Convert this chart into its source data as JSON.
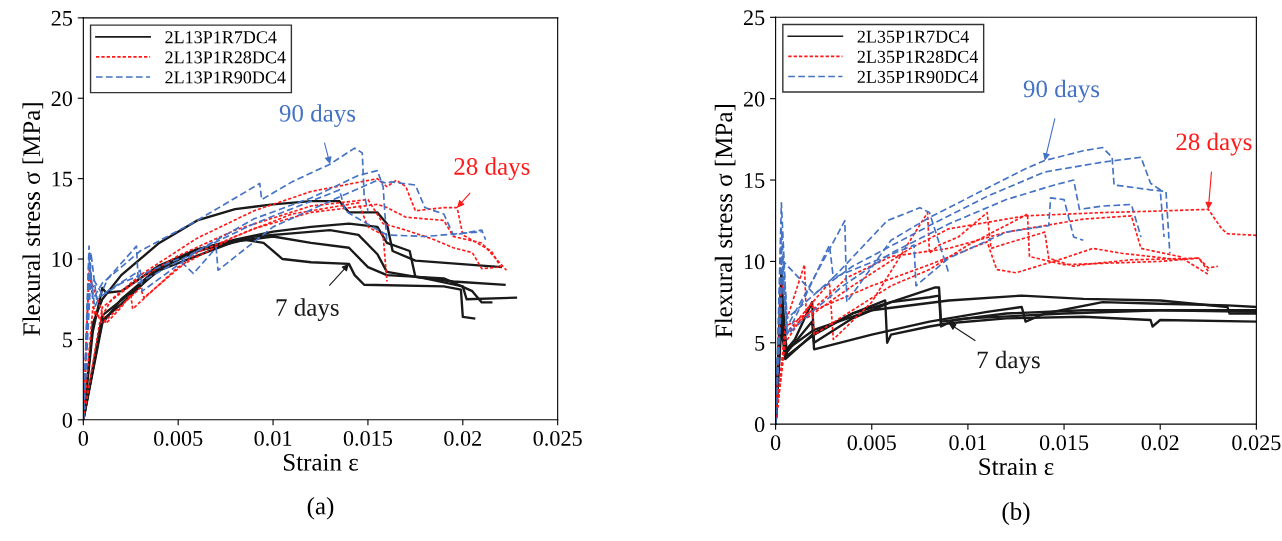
{
  "chart_data": [
    {
      "type": "line",
      "xlabel": "Strain ε",
      "ylabel": "Flexural stress σ [MPa]",
      "xlim": [
        0,
        0.025
      ],
      "ylim": [
        0,
        25
      ],
      "xticks": [
        0,
        0.005,
        0.01,
        0.015,
        0.02,
        0.025
      ],
      "yticks": [
        0,
        5,
        10,
        15,
        20,
        25
      ],
      "grid": false,
      "legend": "top left",
      "series": [
        {
          "name": "2L13P1R7DC4",
          "color": "#1a1a1a",
          "line_style": "solid",
          "x": [
            0,
            0.0005,
            0.001,
            0.002,
            0.004,
            0.006,
            0.008,
            0.01,
            0.012,
            0.0135,
            0.014,
            0.0155,
            0.016,
            0.0163,
            0.0175,
            0.022
          ],
          "values": [
            0,
            6,
            7.5,
            9,
            11,
            12.4,
            13.1,
            13.4,
            13.6,
            13.6,
            12.9,
            12.9,
            12.2,
            10.5,
            9.9,
            9.5
          ]
        },
        {
          "color": "#1a1a1a",
          "line_style": "solid",
          "x": [
            0,
            0.0005,
            0.001,
            0.0012,
            0.002,
            0.004,
            0.006,
            0.008,
            0.01,
            0.012,
            0.014,
            0.0155,
            0.016,
            0.0172,
            0.0175,
            0.0195,
            0.0222
          ],
          "values": [
            0,
            5.5,
            8.2,
            7.9,
            8,
            9.6,
            10.6,
            11.2,
            11.7,
            12,
            12.2,
            12,
            11,
            10.5,
            8.9,
            8.6,
            8.4
          ]
        },
        {
          "color": "#1a1a1a",
          "line_style": "solid",
          "x": [
            0,
            0.001,
            0.002,
            0.004,
            0.006,
            0.009,
            0.011,
            0.013,
            0.0145,
            0.0155,
            0.016,
            0.018,
            0.02,
            0.0202,
            0.0228
          ],
          "values": [
            0,
            6,
            7.5,
            9.5,
            10.6,
            11.4,
            11.6,
            11.8,
            11.5,
            10.3,
            9.2,
            8.8,
            8.3,
            7.5,
            7.6
          ]
        },
        {
          "color": "#1a1a1a",
          "line_style": "solid",
          "x": [
            0,
            0.001,
            0.002,
            0.004,
            0.006,
            0.0085,
            0.0095,
            0.0105,
            0.012,
            0.014,
            0.0143,
            0.0148,
            0.019,
            0.0199,
            0.02,
            0.0206
          ],
          "values": [
            0,
            6.2,
            7.2,
            9.4,
            10.5,
            11.2,
            11,
            10,
            9.8,
            9.7,
            9,
            8.4,
            8.3,
            8.1,
            6.4,
            6.3
          ]
        },
        {
          "color": "#1a1a1a",
          "line_style": "solid",
          "x": [
            0,
            0.001,
            0.004,
            0.008,
            0.01,
            0.012,
            0.014,
            0.015,
            0.016,
            0.019,
            0.0205,
            0.021,
            0.0215
          ],
          "values": [
            0,
            6.5,
            9.3,
            11.1,
            11.4,
            11,
            10.7,
            9.5,
            9,
            8.8,
            8,
            7.3,
            7.3
          ]
        },
        {
          "name": "2L13P1R28DC4",
          "color": "#ff1a1a",
          "line_style": "dotted",
          "x": [
            0,
            0.0003,
            0.0006,
            0.001,
            0.0015,
            0.003,
            0.006,
            0.009,
            0.012,
            0.0155,
            0.016,
            0.0165,
            0.017,
            0.0175,
            0.019,
            0.0197,
            0.02,
            0.0215,
            0.022
          ],
          "values": [
            0,
            9.5,
            6.5,
            6.5,
            7.5,
            9,
            11.3,
            13,
            14.2,
            15,
            14.5,
            14.9,
            14.5,
            13,
            13.2,
            13.2,
            11.5,
            10.5,
            9.5
          ]
        },
        {
          "color": "#ff1a1a",
          "line_style": "dotted",
          "x": [
            0,
            0.0003,
            0.0012,
            0.002,
            0.0025,
            0.0026,
            0.005,
            0.008,
            0.011,
            0.0145,
            0.015,
            0.0158,
            0.016
          ],
          "values": [
            0,
            9,
            6,
            7,
            7.8,
            6.9,
            9.5,
            11.4,
            12.8,
            13.5,
            12,
            11.5,
            8.6
          ]
        },
        {
          "color": "#ff1a1a",
          "line_style": "dotted",
          "x": [
            0,
            0.0005,
            0.001,
            0.003,
            0.0032,
            0.006,
            0.009,
            0.012,
            0.0155,
            0.016,
            0.017,
            0.019,
            0.0195,
            0.021,
            0.0223
          ],
          "values": [
            0,
            7,
            6,
            8.2,
            7.6,
            10.4,
            11.9,
            12.9,
            13.4,
            13.2,
            12.6,
            12.4,
            11.4,
            11,
            9.3
          ]
        },
        {
          "color": "#ff1a1a",
          "line_style": "dotted",
          "x": [
            0,
            0.001,
            0.003,
            0.005,
            0.008,
            0.012,
            0.015,
            0.0158,
            0.017,
            0.0185,
            0.0195,
            0.0205,
            0.021,
            0.022
          ],
          "values": [
            0,
            7,
            8.8,
            10.2,
            11.8,
            13.3,
            13.7,
            12.2,
            11.8,
            11.2,
            10.7,
            10.4,
            9.4,
            9.5
          ]
        },
        {
          "name": "2L13P1R90DC4",
          "color": "#4472c4",
          "line_style": "dashed",
          "x": [
            0,
            0.0003,
            0.0005,
            0.001,
            0.003,
            0.006,
            0.0093,
            0.0094,
            0.011,
            0.013,
            0.0143,
            0.0147,
            0.0148,
            0.015
          ],
          "values": [
            0,
            10.8,
            7.5,
            8.5,
            10.5,
            12.4,
            14.7,
            13.7,
            14.8,
            15.9,
            16.9,
            16.6,
            14,
            13
          ]
        },
        {
          "color": "#4472c4",
          "line_style": "dashed",
          "x": [
            0,
            0.0003,
            0.0006,
            0.0013,
            0.0028,
            0.0029,
            0.006,
            0.009,
            0.012,
            0.0145,
            0.0155,
            0.0158,
            0.016
          ],
          "values": [
            0,
            10,
            7,
            8.8,
            10.8,
            8.5,
            10.5,
            12.5,
            13.8,
            15.2,
            15.5,
            14.5,
            11
          ]
        },
        {
          "color": "#4472c4",
          "line_style": "dashed",
          "x": [
            0,
            0.0004,
            0.0007,
            0.002,
            0.005,
            0.0058,
            0.007,
            0.0071,
            0.01,
            0.013,
            0.0155,
            0.016,
            0.0162,
            0.0175,
            0.018,
            0.019,
            0.0195,
            0.021,
            0.0212
          ],
          "values": [
            0,
            10.4,
            7.5,
            8.5,
            10,
            9.1,
            10.7,
            9.3,
            12,
            13.6,
            14.9,
            14.7,
            14.8,
            14.6,
            13.2,
            12.8,
            11.5,
            11.8,
            11.2
          ]
        },
        {
          "color": "#4472c4",
          "line_style": "dashed",
          "x": [
            0,
            0.0004,
            0.001,
            0.003,
            0.0031,
            0.006,
            0.009,
            0.012,
            0.0135,
            0.0138,
            0.0145,
            0.016,
            0.018,
            0.021
          ],
          "values": [
            0,
            9,
            7.8,
            9.3,
            8,
            10.5,
            12.2,
            13.6,
            14.3,
            13,
            12.5,
            11.5,
            11.4,
            11.7
          ]
        }
      ],
      "annotations": [
        {
          "text": "7 days",
          "x": 0.014,
          "y": 9.7
        },
        {
          "text": "28 days",
          "x": 0.0197,
          "y": 13.2
        },
        {
          "text": "90 days",
          "x": 0.013,
          "y": 15.9
        },
        "(a)"
      ]
    },
    {
      "type": "line",
      "xlabel": "Strain ε",
      "ylabel": "Flexural stress σ [MPa]",
      "xlim": [
        0,
        0.025
      ],
      "ylim": [
        0,
        25
      ],
      "xticks": [
        0,
        0.005,
        0.01,
        0.015,
        0.02,
        0.025
      ],
      "yticks": [
        0,
        5,
        10,
        15,
        20,
        25
      ],
      "grid": false,
      "legend": "top left",
      "series": [
        {
          "name": "2L35P1R7DC4",
          "color": "#1a1a1a",
          "line_style": "solid",
          "x": [
            0,
            0.0003,
            0.0005,
            0.001,
            0.0019,
            0.002,
            0.004,
            0.006,
            0.0083,
            0.0085,
            0.0086,
            0.01,
            0.015,
            0.02,
            0.025
          ],
          "values": [
            0,
            9.5,
            4.5,
            5.2,
            7.5,
            5,
            6.5,
            7.5,
            8.4,
            8.4,
            6.3,
            6.5,
            6.8,
            7,
            7
          ]
        },
        {
          "color": "#1a1a1a",
          "line_style": "solid",
          "x": [
            0,
            0.0003,
            0.0006,
            0.002,
            0.004,
            0.0057,
            0.0058,
            0.006,
            0.008,
            0.009,
            0.012,
            0.016,
            0.0195,
            0.0196,
            0.02,
            0.025
          ],
          "values": [
            0,
            8,
            4.2,
            5.5,
            6.8,
            7.6,
            5,
            5.5,
            6,
            6.2,
            6.5,
            6.6,
            6.4,
            6,
            6.4,
            6.3
          ]
        },
        {
          "color": "#1a1a1a",
          "line_style": "solid",
          "x": [
            0,
            0.0003,
            0.0005,
            0.002,
            0.004,
            0.006,
            0.008,
            0.0085,
            0.0086,
            0.0093,
            0.012,
            0.016,
            0.02,
            0.025
          ],
          "values": [
            0,
            6,
            4,
            5.6,
            6.8,
            7.5,
            7.8,
            7.9,
            6,
            6.4,
            6.8,
            7,
            7,
            6.9
          ]
        },
        {
          "color": "#1a1a1a",
          "line_style": "solid",
          "x": [
            0,
            0.0003,
            0.0005,
            0.0019,
            0.002,
            0.005,
            0.008,
            0.011,
            0.0128,
            0.013,
            0.014,
            0.017,
            0.02,
            0.0235,
            0.025
          ],
          "values": [
            0,
            7,
            4.3,
            6.3,
            4.6,
            5.5,
            6.3,
            6.9,
            7.2,
            6.3,
            6.8,
            7.5,
            7.4,
            7.3,
            7.2
          ]
        },
        {
          "color": "#1a1a1a",
          "line_style": "solid",
          "x": [
            0,
            0.0003,
            0.0005,
            0.002,
            0.005,
            0.009,
            0.0128,
            0.016,
            0.02,
            0.0235,
            0.0236,
            0.025
          ],
          "values": [
            0,
            8.5,
            4.5,
            5.8,
            7,
            7.6,
            7.9,
            7.7,
            7.6,
            7.2,
            6.8,
            6.8
          ]
        },
        {
          "name": "2L35P1R28DC4",
          "color": "#ff1a1a",
          "line_style": "dotted",
          "x": [
            0,
            0.0003,
            0.0006,
            0.0015,
            0.0016,
            0.004,
            0.007,
            0.009,
            0.013,
            0.017,
            0.02,
            0.0225,
            0.0232,
            0.0235,
            0.025
          ],
          "values": [
            0,
            9,
            6.5,
            9.8,
            6.5,
            8.5,
            10.8,
            12,
            12.8,
            13,
            13.1,
            13.2,
            12,
            11.7,
            11.6
          ]
        },
        {
          "color": "#ff1a1a",
          "line_style": "dotted",
          "x": [
            0,
            0.0005,
            0.0028,
            0.003,
            0.005,
            0.0079,
            0.008,
            0.0085,
            0.0095,
            0.011,
            0.0112,
            0.012,
            0.014,
            0.0142,
            0.0155,
            0.016,
            0.0185,
            0.022,
            0.0225,
            0.023
          ],
          "values": [
            0,
            5.5,
            8.7,
            5.2,
            7.5,
            13,
            10.5,
            11,
            11.5,
            13,
            10.8,
            11.1,
            11.8,
            10.2,
            9.7,
            9.8,
            10.1,
            10.2,
            9.6,
            9.7
          ]
        },
        {
          "color": "#ff1a1a",
          "line_style": "dotted",
          "x": [
            0,
            0.0005,
            0.0019,
            0.002,
            0.004,
            0.006,
            0.008,
            0.01,
            0.0131,
            0.0132,
            0.015,
            0.0175,
            0.02,
            0.022,
            0.0225
          ],
          "values": [
            0,
            5,
            7.5,
            5.5,
            7,
            8.5,
            9.5,
            11,
            12.9,
            10.3,
            9.8,
            9.9,
            10,
            10.2,
            9.4
          ]
        },
        {
          "color": "#ff1a1a",
          "line_style": "dotted",
          "x": [
            0,
            0.0005,
            0.003,
            0.0037,
            0.006,
            0.009,
            0.012,
            0.016,
            0.0185,
            0.019,
            0.021,
            0.0225
          ],
          "values": [
            0,
            5.5,
            8.2,
            9,
            10.3,
            10.8,
            11.8,
            12.6,
            12.8,
            10.8,
            10.3,
            9.2
          ]
        },
        {
          "color": "#ff1a1a",
          "line_style": "dotted",
          "x": [
            0,
            0.0005,
            0.002,
            0.005,
            0.008,
            0.011,
            0.0115,
            0.0125,
            0.015,
            0.0165,
            0.018,
            0.021
          ],
          "values": [
            0,
            6,
            7,
            8.5,
            9.8,
            11.2,
            9.5,
            9.3,
            10.2,
            10.8,
            10.5,
            10.1
          ]
        },
        {
          "name": "2L35P1R90DC4",
          "color": "#4472c4",
          "line_style": "dashed",
          "x": [
            0,
            0.0003,
            0.0006,
            0.002,
            0.0036,
            0.0037,
            0.006,
            0.008,
            0.011,
            0.013,
            0.014,
            0.016,
            0.017,
            0.0175,
            0.0176,
            0.0195,
            0.0203,
            0.0205
          ],
          "values": [
            0,
            13.6,
            6,
            9,
            12.5,
            7.5,
            11.3,
            12.7,
            14.5,
            15.7,
            16.2,
            16.8,
            17,
            16.4,
            14.7,
            14.4,
            14.3,
            10.5
          ]
        },
        {
          "color": "#4472c4",
          "line_style": "dashed",
          "x": [
            0,
            0.0003,
            0.0006,
            0.0028,
            0.003,
            0.0058,
            0.0075,
            0.008,
            0.009
          ],
          "values": [
            0,
            11,
            5.5,
            11,
            9,
            12.5,
            13.3,
            13,
            9.3
          ]
        },
        {
          "color": "#4472c4",
          "line_style": "dashed",
          "x": [
            0,
            0.0004,
            0.002,
            0.004,
            0.008,
            0.011,
            0.014,
            0.017,
            0.019,
            0.0195,
            0.02,
            0.0202
          ],
          "values": [
            0,
            10,
            8,
            9.7,
            12.2,
            14,
            15.5,
            16.1,
            16.4,
            14.8,
            14.4,
            11.5
          ]
        },
        {
          "color": "#4472c4",
          "line_style": "dashed",
          "x": [
            0,
            0.0003,
            0.0006,
            0.002,
            0.0035,
            0.006,
            0.009,
            0.012,
            0.0145,
            0.0155,
            0.0158,
            0.017,
            0.0185,
            0.019
          ],
          "values": [
            0,
            10,
            5.5,
            7,
            8.5,
            10.5,
            12.3,
            13.8,
            14.7,
            15,
            13.2,
            13.4,
            13.5,
            11.5
          ]
        },
        {
          "color": "#4472c4",
          "line_style": "dashed",
          "x": [
            0,
            0.0003,
            0.0006,
            0.003,
            0.0072,
            0.0073,
            0.009,
            0.012,
            0.0142,
            0.0143,
            0.015,
            0.0155,
            0.016
          ],
          "values": [
            0,
            12,
            6.5,
            9,
            11,
            8.5,
            10.2,
            11.8,
            12.2,
            13.9,
            13.8,
            11.5,
            11.3
          ]
        }
      ],
      "annotations": [
        {
          "text": "7 days",
          "x": 0.009,
          "y": 6.2
        },
        {
          "text": "28 days",
          "x": 0.0225,
          "y": 13.2
        },
        {
          "text": "90 days",
          "x": 0.014,
          "y": 16.2
        },
        "(b)"
      ]
    }
  ]
}
